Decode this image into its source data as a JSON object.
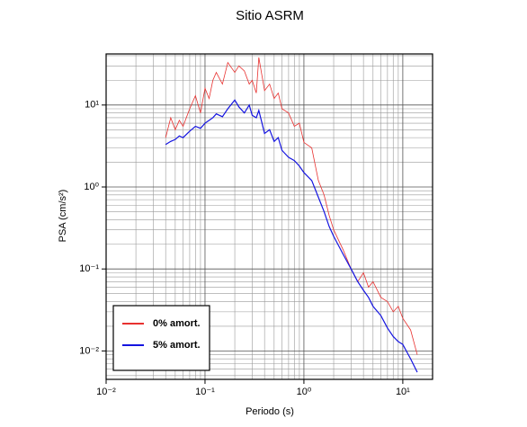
{
  "chart_data": {
    "type": "line",
    "title": "Sitio ASRM",
    "x_label": "Periodo (s)",
    "y_label": "PSA (cm/s²)",
    "x_log": true,
    "y_log": true,
    "grid": true,
    "legend": "lower left",
    "xlim": [
      0.01,
      20
    ],
    "ylim": [
      0.0045,
      42
    ],
    "xticks": [
      {
        "value": 0.01,
        "label": "10⁻²"
      },
      {
        "value": 0.1,
        "label": "10⁻¹"
      },
      {
        "value": 1,
        "label": "10⁰"
      },
      {
        "value": 10,
        "label": "10¹"
      }
    ],
    "yticks": [
      {
        "value": 0.01,
        "label": "10⁻²"
      },
      {
        "value": 0.1,
        "label": "10⁻¹"
      },
      {
        "value": 1,
        "label": "10⁰"
      },
      {
        "value": 10,
        "label": "10¹"
      }
    ],
    "xminor": [
      0.02,
      0.03,
      0.04,
      0.05,
      0.06,
      0.07,
      0.08,
      0.09,
      0.2,
      0.3,
      0.4,
      0.5,
      0.6,
      0.7,
      0.8,
      0.9,
      2,
      3,
      4,
      5,
      6,
      7,
      8,
      9,
      20
    ],
    "yminor": [
      0.005,
      0.006,
      0.007,
      0.008,
      0.009,
      0.02,
      0.03,
      0.04,
      0.05,
      0.06,
      0.07,
      0.08,
      0.09,
      0.2,
      0.3,
      0.4,
      0.5,
      0.6,
      0.7,
      0.8,
      0.9,
      2,
      3,
      4,
      5,
      6,
      7,
      8,
      9,
      20,
      30,
      40
    ],
    "x": [
      0.04,
      0.045,
      0.05,
      0.055,
      0.06,
      0.07,
      0.08,
      0.09,
      0.1,
      0.11,
      0.12,
      0.13,
      0.15,
      0.17,
      0.2,
      0.22,
      0.25,
      0.28,
      0.3,
      0.33,
      0.35,
      0.4,
      0.45,
      0.5,
      0.55,
      0.6,
      0.7,
      0.8,
      0.9,
      1.0,
      1.2,
      1.4,
      1.6,
      1.8,
      2.0,
      2.5,
      3.0,
      3.5,
      4.0,
      4.5,
      5,
      6,
      7,
      8,
      9,
      10,
      12,
      14
    ],
    "series": [
      {
        "name": "0% amort.",
        "color": "#e8312f",
        "width": 0.8,
        "values": [
          4.0,
          7.0,
          5.0,
          6.5,
          5.5,
          9.0,
          13,
          8,
          16,
          12,
          20,
          25,
          18,
          33,
          25,
          30,
          26,
          18,
          20,
          14,
          38,
          15,
          18,
          12,
          14,
          9,
          8,
          5.5,
          6.0,
          3.5,
          3.0,
          1.2,
          0.8,
          0.45,
          0.3,
          0.17,
          0.1,
          0.07,
          0.09,
          0.06,
          0.07,
          0.045,
          0.04,
          0.03,
          0.035,
          0.025,
          0.018,
          0.009
        ]
      },
      {
        "name": "5% amort.",
        "color": "#1414e0",
        "width": 1.2,
        "values": [
          3.3,
          3.6,
          3.8,
          4.2,
          4.0,
          4.8,
          5.5,
          5.2,
          6.0,
          6.5,
          7.0,
          7.8,
          7.2,
          9.0,
          11.5,
          9.5,
          8.0,
          10.0,
          7.5,
          7.0,
          8.6,
          4.5,
          5.0,
          3.6,
          4.0,
          2.8,
          2.3,
          2.1,
          1.8,
          1.5,
          1.2,
          0.75,
          0.5,
          0.33,
          0.25,
          0.15,
          0.1,
          0.07,
          0.055,
          0.045,
          0.035,
          0.027,
          0.019,
          0.015,
          0.013,
          0.012,
          0.008,
          0.0055
        ]
      }
    ]
  }
}
